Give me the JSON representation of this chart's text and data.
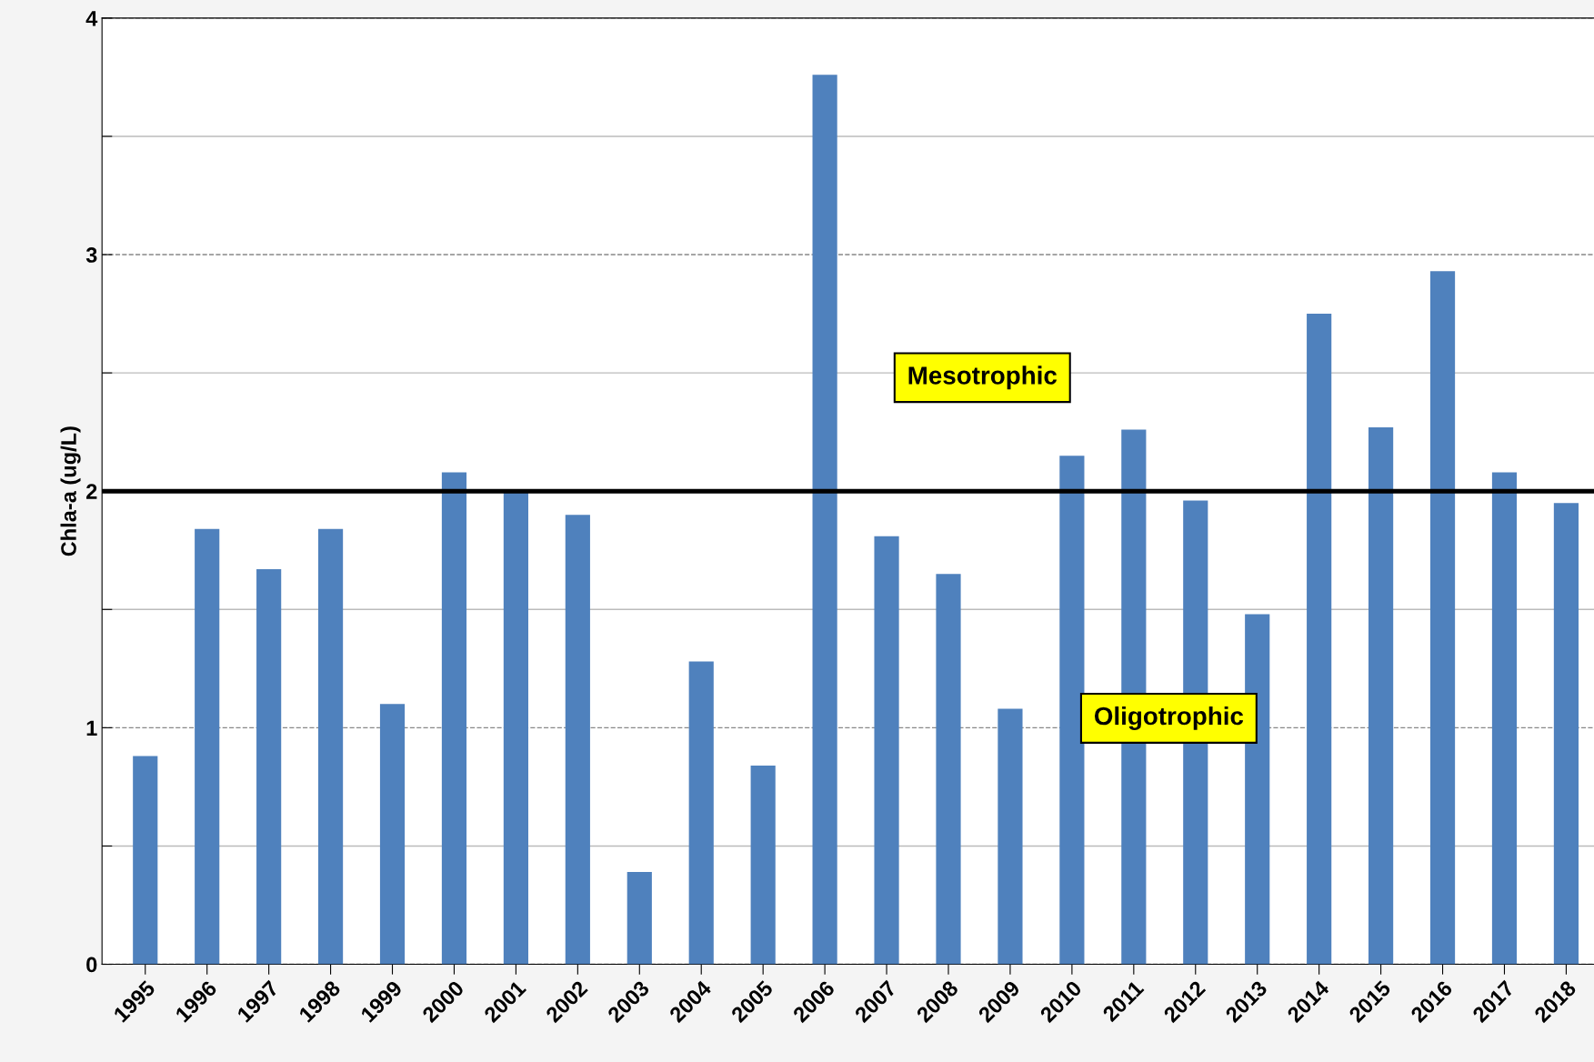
{
  "chart_data": {
    "type": "bar",
    "ylabel": "Chla-a (ug/L)",
    "categories": [
      "1995",
      "1996",
      "1997",
      "1998",
      "1999",
      "2000",
      "2001",
      "2002",
      "2003",
      "2004",
      "2005",
      "2006",
      "2007",
      "2008",
      "2009",
      "2010",
      "2011",
      "2012",
      "2013",
      "2014",
      "2015",
      "2016",
      "2017",
      "2018"
    ],
    "values": [
      0.88,
      1.84,
      1.67,
      1.84,
      1.1,
      2.08,
      2.0,
      1.9,
      0.39,
      1.28,
      0.84,
      3.76,
      1.81,
      1.65,
      1.08,
      2.15,
      2.26,
      1.96,
      1.48,
      2.75,
      2.27,
      2.93,
      2.08,
      1.95
    ],
    "color": "#4f81bd",
    "ylim": [
      0,
      4
    ],
    "yticks": [
      0,
      {
        "value": 0.5,
        "label": null
      },
      1,
      {
        "value": 1.5,
        "label": null
      },
      2,
      {
        "value": 2.5,
        "label": null
      },
      3,
      {
        "value": 3.5,
        "label": null
      },
      4
    ],
    "grid": "y",
    "ref_lines": [
      {
        "axis": "y",
        "value": 2,
        "label": null,
        "color": "#000000",
        "line_style": "solid"
      }
    ],
    "annotations": [
      "Mesotrophic",
      "Oligotrophic"
    ]
  }
}
